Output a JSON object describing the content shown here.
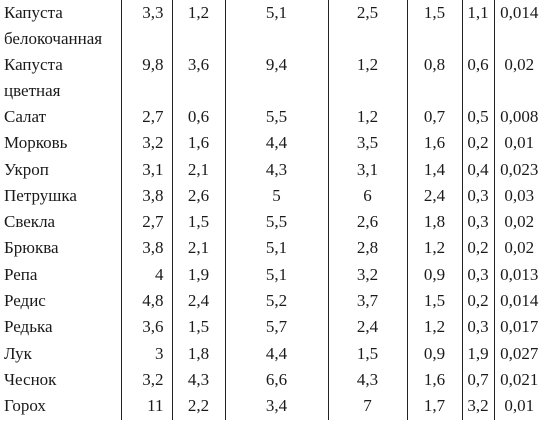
{
  "table": {
    "rows": [
      {
        "name": [
          "Капуста",
          "белокочанная"
        ],
        "values": [
          "3,3",
          "1,2",
          "5,1",
          "2,5",
          "1,5",
          "1,1",
          "0,014"
        ]
      },
      {
        "name": [
          "Капуста",
          "цветная"
        ],
        "values": [
          "9,8",
          "3,6",
          "9,4",
          "1,2",
          "0,8",
          "0,6",
          "0,02"
        ]
      },
      {
        "name": [
          "Салат"
        ],
        "values": [
          "2,7",
          "0,6",
          "5,5",
          "1,2",
          "0,7",
          "0,5",
          "0,008"
        ]
      },
      {
        "name": [
          "Морковь"
        ],
        "values": [
          "3,2",
          "1,6",
          "4,4",
          "3,5",
          "1,6",
          "0,2",
          "0,01"
        ]
      },
      {
        "name": [
          "Укроп"
        ],
        "values": [
          "3,1",
          "2,1",
          "4,3",
          "3,1",
          "1,4",
          "0,4",
          "0,023"
        ]
      },
      {
        "name": [
          "Петрушка"
        ],
        "values": [
          "3,8",
          "2,6",
          "5",
          "6",
          "2,4",
          "0,3",
          "0,03"
        ]
      },
      {
        "name": [
          "Свекла"
        ],
        "values": [
          "2,7",
          "1,5",
          "5,5",
          "2,6",
          "1,8",
          "0,3",
          "0,02"
        ]
      },
      {
        "name": [
          "Брюква"
        ],
        "values": [
          "3,8",
          "2,1",
          "5,1",
          "2,8",
          "1,2",
          "0,2",
          "0,02"
        ]
      },
      {
        "name": [
          "Репа"
        ],
        "values": [
          "4",
          "1,9",
          "5,1",
          "3,2",
          "0,9",
          "0,3",
          "0,013"
        ]
      },
      {
        "name": [
          "Редис"
        ],
        "values": [
          "4,8",
          "2,4",
          "5,2",
          "3,7",
          "1,5",
          "0,2",
          "0,014"
        ]
      },
      {
        "name": [
          "Редька"
        ],
        "values": [
          "3,6",
          "1,5",
          "5,7",
          "2,4",
          "1,2",
          "0,3",
          "0,017"
        ]
      },
      {
        "name": [
          "Лук"
        ],
        "values": [
          "3",
          "1,8",
          "4,4",
          "1,5",
          "0,9",
          "1,9",
          "0,027"
        ]
      },
      {
        "name": [
          "Чеснок"
        ],
        "values": [
          "3,2",
          "4,3",
          "6,6",
          "4,3",
          "1,6",
          "0,7",
          "0,021"
        ]
      },
      {
        "name": [
          "Горох"
        ],
        "values": [
          "11",
          "2,2",
          "3,4",
          "7",
          "1,7",
          "3,2",
          "0,01"
        ]
      }
    ]
  }
}
